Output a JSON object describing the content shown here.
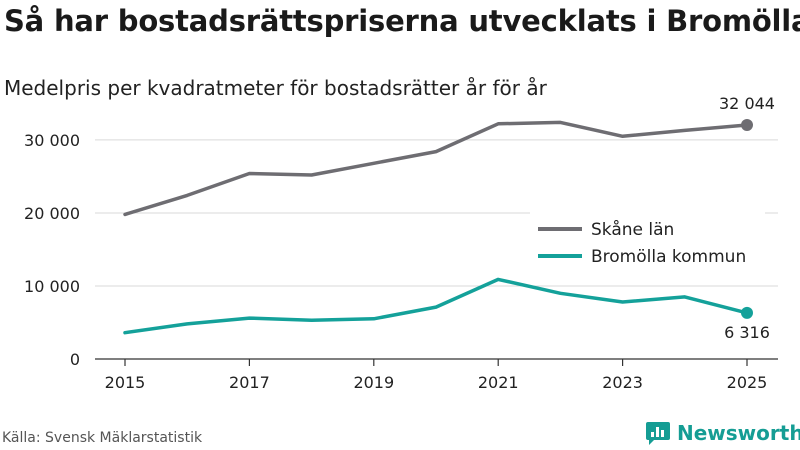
{
  "header": {
    "title": "Så har bostadsrättspriserna utvecklats i Bromölla",
    "subtitle": "Medelpris per kvadratmeter för bostadsrätter år för år"
  },
  "footer": {
    "source": "Källa: Svensk Mäklarstatistik",
    "brand": "Newsworthy"
  },
  "colors": {
    "skane": "#6e6d72",
    "bromolla": "#14a19a",
    "grid": "#d9d9d9",
    "axis": "#333333"
  },
  "chart_data": {
    "type": "line",
    "title": "Så har bostadsrättspriserna utvecklats i Bromölla",
    "subtitle": "Medelpris per kvadratmeter för bostadsrätter år för år",
    "xlabel": "",
    "ylabel": "",
    "x": [
      2015,
      2016,
      2017,
      2018,
      2019,
      2020,
      2021,
      2022,
      2023,
      2024,
      2025
    ],
    "xticks": [
      "2015",
      "2017",
      "2019",
      "2021",
      "2023",
      "2025"
    ],
    "yticks": [
      {
        "value": 0,
        "label": "0"
      },
      {
        "value": 10000,
        "label": "10 000"
      },
      {
        "value": 20000,
        "label": "20 000"
      },
      {
        "value": 30000,
        "label": "30 000"
      }
    ],
    "ylim": [
      0,
      33000
    ],
    "grid": true,
    "legend_position": "right-middle",
    "series": [
      {
        "name": "Skåne län",
        "color": "#6e6d72",
        "values": [
          19800,
          22400,
          25400,
          25200,
          26800,
          28400,
          32200,
          32400,
          30500,
          31300,
          32044
        ],
        "end_label": "32 044",
        "end_label_side": "above"
      },
      {
        "name": "Bromölla kommun",
        "color": "#14a19a",
        "values": [
          3600,
          4800,
          5600,
          5300,
          5500,
          7100,
          10900,
          9000,
          7800,
          8500,
          6316
        ],
        "end_label": "6 316",
        "end_label_side": "below"
      }
    ]
  }
}
